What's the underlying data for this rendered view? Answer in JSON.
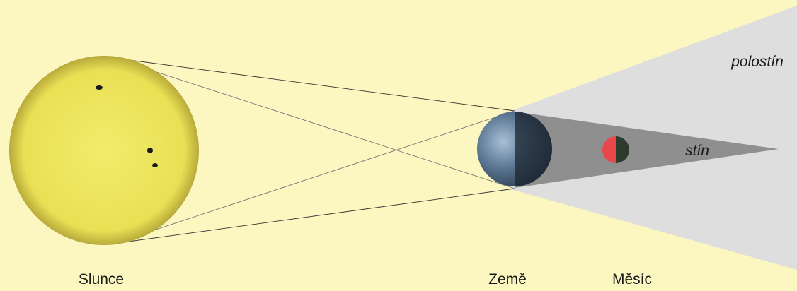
{
  "labels": {
    "sun": "Slunce",
    "earth": "Země",
    "moon": "Měsíc",
    "penumbra": "polostín",
    "umbra": "stín"
  }
}
